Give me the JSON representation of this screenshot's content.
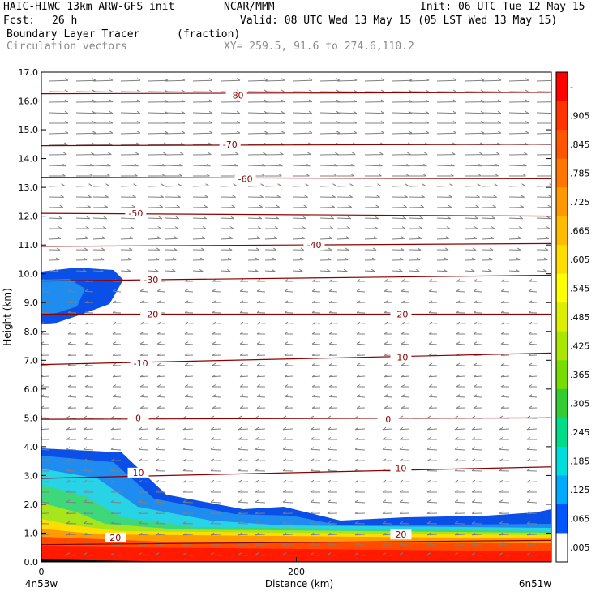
{
  "header": {
    "model": "HAIC-HIWC 13km ARW-GFS init",
    "org": "NCAR/MMM",
    "init": "Init: 06 UTC Tue 12 May 15",
    "fcst_label": "Fcst:",
    "fcst_value": "26 h",
    "valid": "Valid: 08 UTC Wed 13 May 15 (05 LST Wed 13 May 15)",
    "field": "Boundary Layer Tracer",
    "units": "(fraction)",
    "vectors": "Circulation vectors",
    "xy": "XY= 259.5, 91.6 to 274.6,110.2"
  },
  "chart_data": {
    "type": "heatmap",
    "xlabel": "Distance (km)",
    "ylabel": "Height (km)",
    "xlim": [
      0,
      400
    ],
    "ylim": [
      0,
      17
    ],
    "x_ticks": [
      {
        "v": 0,
        "label": "0"
      },
      {
        "v": 200,
        "label": "200"
      }
    ],
    "x_end_labels": [
      "4n53w",
      "6n51w"
    ],
    "y_ticks": [
      "0.0",
      "1.0",
      "2.0",
      "3.0",
      "4.0",
      "5.0",
      "6.0",
      "7.0",
      "8.0",
      "9.0",
      "10.0",
      "11.0",
      "12.0",
      "13.0",
      "14.0",
      "15.0",
      "16.0",
      "17.0"
    ],
    "colorbar": {
      "labels": [
        "-",
        ".905",
        ".845",
        ".785",
        ".725",
        ".665",
        ".605",
        ".545",
        ".485",
        ".425",
        ".365",
        ".305",
        ".245",
        ".185",
        ".125",
        ".065",
        ".005"
      ],
      "colors": [
        "#ff0000",
        "#ff3300",
        "#ff5500",
        "#ff7700",
        "#ff9900",
        "#ffbb00",
        "#ffdd00",
        "#ffff00",
        "#ddee00",
        "#aae600",
        "#77dd00",
        "#33cc33",
        "#00dd88",
        "#00dddd",
        "#00aaff",
        "#0055ff",
        "#ffffff"
      ]
    },
    "temperature_contours": [
      {
        "level": 20,
        "y": [
          0.6,
          0.75
        ]
      },
      {
        "level": 10,
        "y": [
          2.9,
          3.3
        ]
      },
      {
        "level": 0,
        "y": [
          4.95,
          5.0
        ]
      },
      {
        "level": -10,
        "y": [
          6.85,
          7.25
        ]
      },
      {
        "level": -20,
        "y": [
          8.6,
          8.6
        ]
      },
      {
        "level": -30,
        "y": [
          9.75,
          9.95
        ]
      },
      {
        "level": -40,
        "y": [
          10.95,
          11.05
        ]
      },
      {
        "level": -50,
        "y": [
          12.1,
          12.0
        ]
      },
      {
        "level": -60,
        "y": [
          13.35,
          13.3
        ]
      },
      {
        "level": -70,
        "y": [
          14.45,
          14.5
        ]
      },
      {
        "level": -80,
        "y": [
          16.25,
          16.3
        ]
      }
    ],
    "contour_labels": [
      {
        "text": "-80",
        "x": 153,
        "y": 16.2
      },
      {
        "text": "-70",
        "x": 148,
        "y": 14.5
      },
      {
        "text": "-60",
        "x": 160,
        "y": 13.3
      },
      {
        "text": "-50",
        "x": 74,
        "y": 12.1
      },
      {
        "text": "-40",
        "x": 214,
        "y": 11.0
      },
      {
        "text": "-30",
        "x": 86,
        "y": 9.8
      },
      {
        "text": "-20",
        "x": 86,
        "y": 8.6
      },
      {
        "text": "-20",
        "x": 282,
        "y": 8.6
      },
      {
        "text": "-10",
        "x": 78,
        "y": 6.9
      },
      {
        "text": "-10",
        "x": 282,
        "y": 7.1
      },
      {
        "text": "0",
        "x": 76,
        "y": 5.0
      },
      {
        "text": "0",
        "x": 272,
        "y": 4.95
      },
      {
        "text": "10",
        "x": 76,
        "y": 3.1
      },
      {
        "text": "10",
        "x": 282,
        "y": 3.25
      },
      {
        "text": "20",
        "x": 58,
        "y": 0.85
      },
      {
        "text": "20",
        "x": 282,
        "y": 0.95
      }
    ]
  }
}
